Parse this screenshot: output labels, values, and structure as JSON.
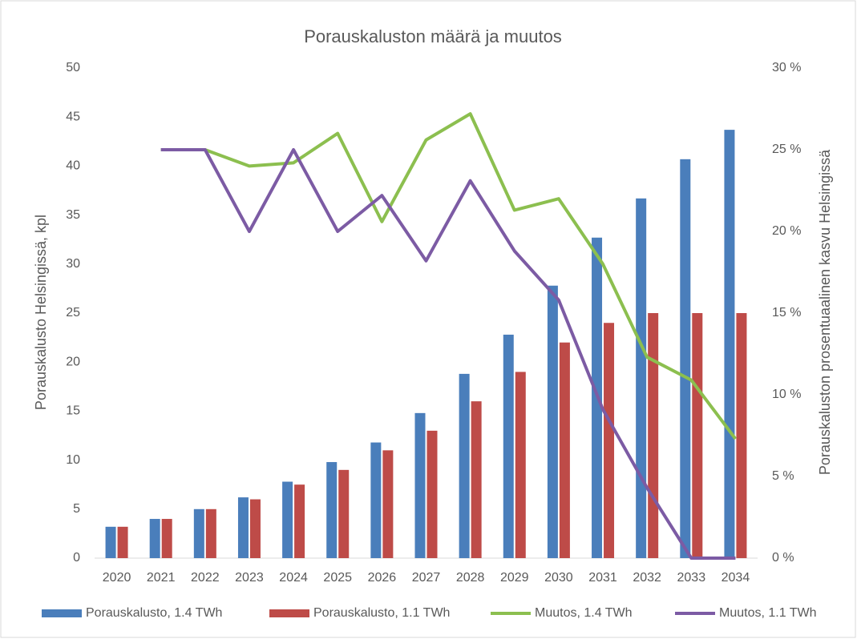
{
  "chart_data": {
    "type": "bar_line_combo",
    "title": "Porauskaluston määrä ja muutos",
    "y_label": "Porauskalusto Helsingissä, kpl",
    "y2_label": "Porauskaluston prosentuaalinen kasvu Helsingissä",
    "categories": [
      "2020",
      "2021",
      "2022",
      "2023",
      "2024",
      "2025",
      "2026",
      "2027",
      "2028",
      "2029",
      "2030",
      "2031",
      "2032",
      "2033",
      "2034"
    ],
    "series": [
      {
        "name": "Porauskalusto, 1.4 TWh",
        "type": "bar",
        "color": "#4a7ebb",
        "values": [
          3.2,
          4.0,
          5.0,
          6.2,
          7.8,
          9.8,
          11.8,
          14.8,
          18.8,
          22.8,
          27.8,
          32.7,
          36.7,
          40.7,
          43.7
        ]
      },
      {
        "name": "Porauskalusto, 1.1 TWh",
        "type": "bar",
        "color": "#be4b48",
        "values": [
          3.2,
          4.0,
          5.0,
          6.0,
          7.5,
          9.0,
          11.0,
          13.0,
          16.0,
          19.0,
          22.0,
          24.0,
          25.0,
          25.0,
          25.0
        ]
      },
      {
        "name": "Muutos, 1.4 TWh",
        "type": "line",
        "axis": "y2",
        "color": "#8cbf4f",
        "values": [
          null,
          25,
          25,
          24,
          24.2,
          26,
          20.6,
          25.6,
          27.2,
          21.3,
          22,
          18,
          12.3,
          10.9,
          7.3
        ]
      },
      {
        "name": "Muutos, 1.1 TWh",
        "type": "line",
        "axis": "y2",
        "color": "#7c5ba4",
        "values": [
          null,
          25,
          25,
          20,
          25,
          20,
          22.2,
          18.2,
          23.1,
          18.8,
          15.8,
          9.1,
          4.3,
          0,
          0
        ]
      }
    ],
    "ylim": [
      0,
      50
    ],
    "yticks": [
      0,
      5,
      10,
      15,
      20,
      25,
      30,
      35,
      40,
      45,
      50
    ],
    "y2lim": [
      0,
      30
    ],
    "y2ticks": [
      {
        "value": 0,
        "label": "0 %"
      },
      {
        "value": 5,
        "label": "5 %"
      },
      {
        "value": 10,
        "label": "10 %"
      },
      {
        "value": 15,
        "label": "15 %"
      },
      {
        "value": 20,
        "label": "20 %"
      },
      {
        "value": 25,
        "label": "25 %"
      },
      {
        "value": 30,
        "label": "30 %"
      }
    ],
    "grid": false,
    "legend": "bottom"
  }
}
